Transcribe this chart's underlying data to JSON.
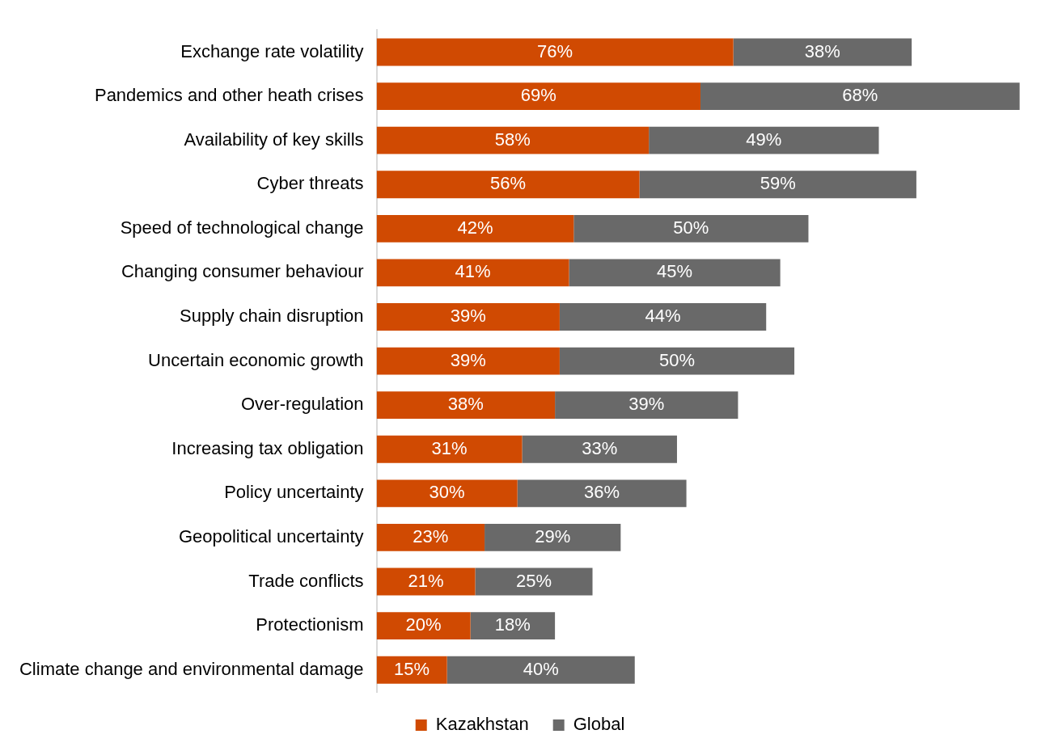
{
  "chart_data": {
    "type": "bar",
    "orientation": "horizontal",
    "stacked": true,
    "legend": "bottom",
    "grid": false,
    "categories": [
      "Exchange rate volatility",
      "Pandemics and other heath crises",
      "Availability of key skills",
      "Cyber threats",
      "Speed of technological change",
      "Changing consumer behaviour",
      "Supply chain disruption",
      "Uncertain economic growth",
      "Over-regulation",
      "Increasing tax obligation",
      "Policy uncertainty",
      "Geopolitical uncertainty",
      "Trade conflicts",
      "Protectionism",
      "Climate change and environmental damage"
    ],
    "series": [
      {
        "name": "Kazakhstan",
        "color": "#d04a02",
        "values": [
          76,
          69,
          58,
          56,
          42,
          41,
          39,
          39,
          38,
          31,
          30,
          23,
          21,
          20,
          15
        ],
        "value_labels": [
          "76%",
          "69%",
          "58%",
          "56%",
          "42%",
          "41%",
          "39%",
          "39%",
          "38%",
          "31%",
          "30%",
          "23%",
          "21%",
          "20%",
          "15%"
        ]
      },
      {
        "name": "Global",
        "color": "#696969",
        "values": [
          38,
          68,
          49,
          59,
          50,
          45,
          44,
          50,
          39,
          33,
          36,
          29,
          25,
          18,
          40
        ],
        "value_labels": [
          "38%",
          "68%",
          "49%",
          "59%",
          "50%",
          "45%",
          "44%",
          "50%",
          "39%",
          "33%",
          "36%",
          "29%",
          "25%",
          "18%",
          "40%"
        ]
      }
    ]
  }
}
